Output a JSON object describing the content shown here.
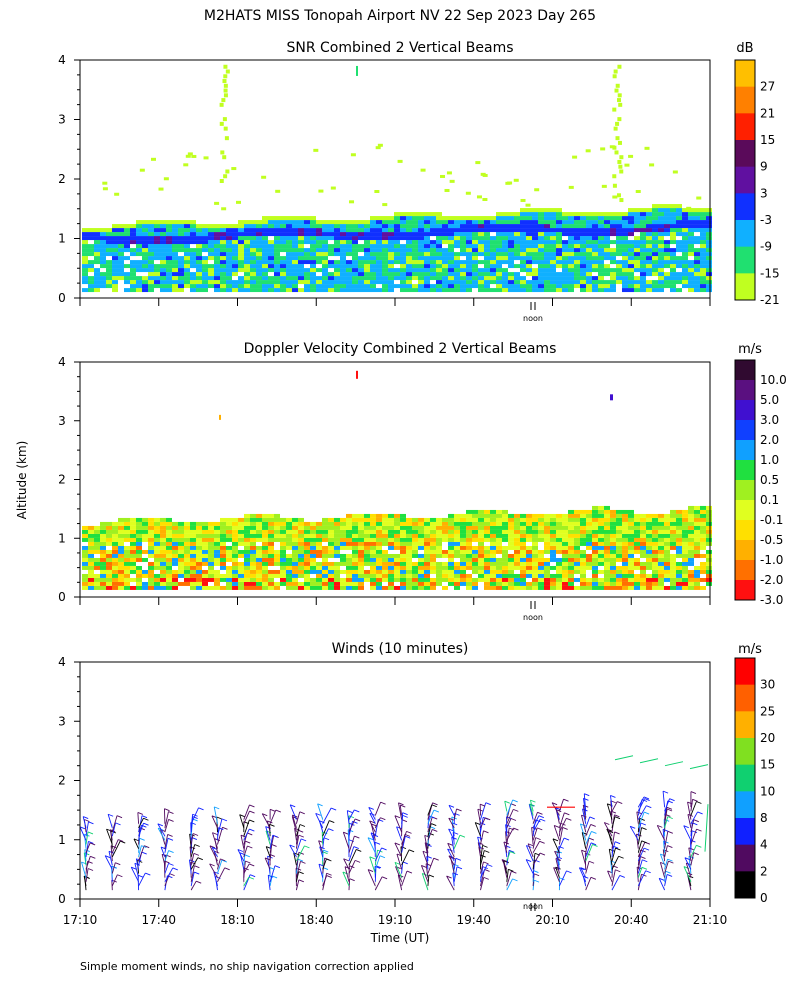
{
  "title": "M2HATS MISS Tonopah Airport NV  22 Sep 2023 Day 265",
  "y_axis_label": "Altitude (km)",
  "x_axis_label": "Time (UT)",
  "footnote": "Simple moment winds, no ship navigation correction applied",
  "noon_label": "noon",
  "chart_data": [
    {
      "type": "heatmap",
      "title": "SNR Combined 2 Vertical Beams",
      "ylim": [
        0,
        4
      ],
      "yticks": [
        "0",
        "1",
        "2",
        "3",
        "4"
      ],
      "colorbar_unit": "dB",
      "colorbar_labels": [
        "27",
        "21",
        "15",
        "9",
        "3",
        "-3",
        "-9",
        "-15",
        "-21"
      ],
      "colorbar_colors": [
        "#ffbf00",
        "#ff8000",
        "#ff2000",
        "#5a0a5a",
        "#6010a0",
        "#1030ff",
        "#10b0ff",
        "#20e070",
        "#c0ff20"
      ]
    },
    {
      "type": "heatmap",
      "title": "Doppler Velocity Combined 2 Vertical Beams",
      "ylim": [
        0,
        4
      ],
      "yticks": [
        "0",
        "1",
        "2",
        "3",
        "4"
      ],
      "colorbar_unit": "m/s",
      "colorbar_labels": [
        "10.0",
        "5.0",
        "3.0",
        "2.0",
        "1.0",
        "0.5",
        "0.1",
        "-0.1",
        "-0.5",
        "-1.0",
        "-2.0",
        "-3.0"
      ],
      "colorbar_colors": [
        "#300a30",
        "#5a1080",
        "#4010d0",
        "#1040ff",
        "#10a0ff",
        "#20e040",
        "#a0f020",
        "#e0ff20",
        "#ffe000",
        "#ffb000",
        "#ff7000",
        "#ff1010"
      ]
    },
    {
      "type": "wind_barbs",
      "title": "Winds (10 minutes)",
      "ylim": [
        0,
        4
      ],
      "yticks": [
        "0",
        "1",
        "2",
        "3",
        "4"
      ],
      "xticks": [
        "17:10",
        "17:40",
        "18:10",
        "18:40",
        "19:10",
        "19:40",
        "20:10",
        "20:40",
        "21:10"
      ],
      "colorbar_unit": "m/s",
      "colorbar_labels": [
        "30",
        "25",
        "20",
        "15",
        "10",
        "8",
        "4",
        "2",
        "0"
      ],
      "colorbar_colors": [
        "#ff0000",
        "#ff6000",
        "#ffb000",
        "#80e020",
        "#10d070",
        "#10a0ff",
        "#1020ff",
        "#500a60",
        "#000000"
      ]
    }
  ]
}
